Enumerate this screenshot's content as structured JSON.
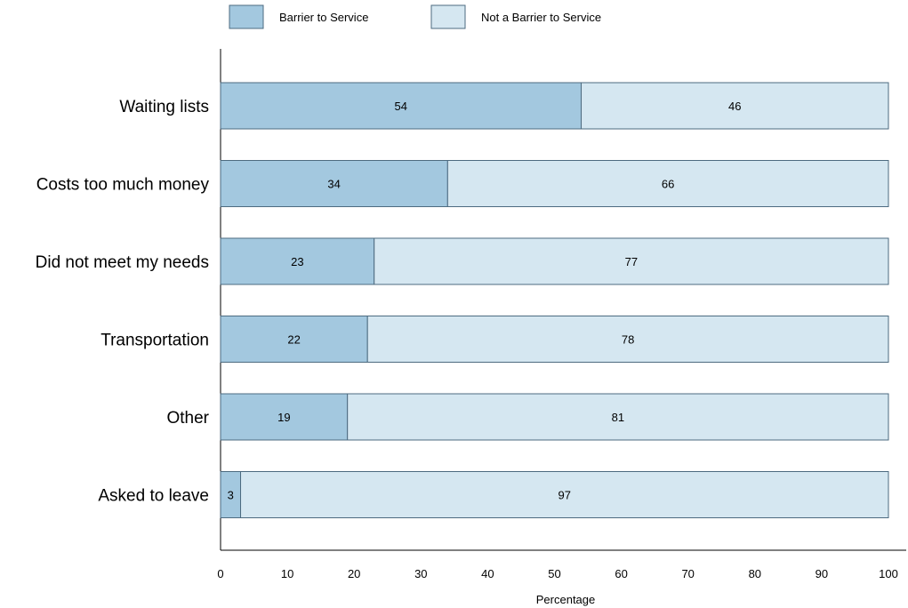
{
  "chart_data": {
    "type": "bar",
    "orientation": "horizontal",
    "stacked": true,
    "categories": [
      "Waiting lists",
      "Costs too much money",
      "Did not meet my needs",
      "Transportation",
      "Other",
      "Asked to leave"
    ],
    "series": [
      {
        "name": "Barrier to Service",
        "values": [
          54,
          34,
          23,
          22,
          19,
          3
        ],
        "color": "#a3c8df"
      },
      {
        "name": "Not a Barrier to Service",
        "values": [
          46,
          66,
          77,
          78,
          81,
          97
        ],
        "color": "#d5e7f1"
      }
    ],
    "xlabel": "Percentage",
    "ylabel": "",
    "xlim": [
      0,
      100
    ],
    "xticks": [
      0,
      10,
      20,
      30,
      40,
      50,
      60,
      70,
      80,
      90,
      100
    ],
    "legend_position": "top",
    "grid": false,
    "bar_outline_color": "#4d6b80"
  }
}
